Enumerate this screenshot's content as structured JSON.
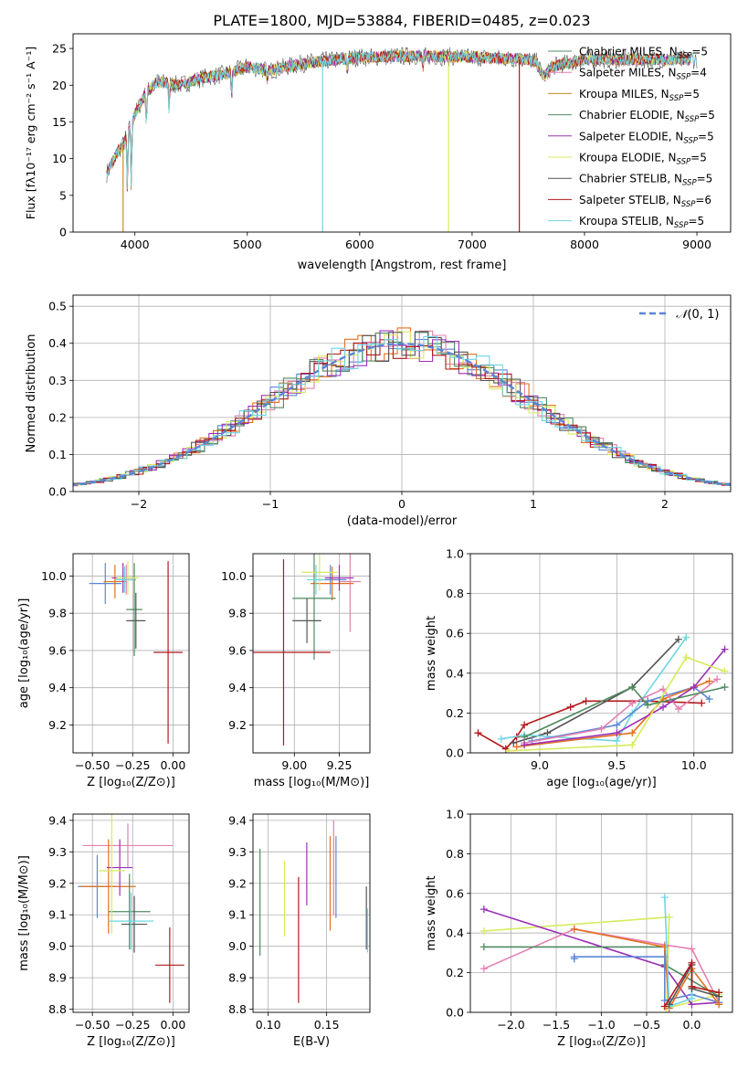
{
  "figure": {
    "title": "PLATE=1800, MJD=53884, FIBERID=0485, z=0.023",
    "colors": [
      "#5f7f3f",
      "#e47fb0",
      "#e3751f",
      "#4f7f4f",
      "#8b2fb1",
      "#d4e84c",
      "#4d4d4d",
      "#b01418",
      "#6ad3df"
    ],
    "model_colors": {
      "Chabrier MILES": "#5b8b66",
      "Salpeter MILES": "#e47fb0",
      "Kroupa MILES": "#c98a2a",
      "Chabrier ELODIE": "#4f8b5f",
      "Salpeter ELODIE": "#9b30b8",
      "Kroupa ELODIE": "#d7ea5c",
      "Chabrier STELIB": "#555555",
      "Salpeter STELIB": "#b3191b",
      "Kroupa STELIB": "#6fd6e2",
      "Blue": "#5a86d6",
      "Orange": "#e4701e"
    }
  },
  "chart_data": [
    {
      "id": "spectrum",
      "type": "line",
      "xlabel": "wavelength [Angstrom, rest frame]",
      "ylabel": "Flux [fλ10⁻¹⁷ erg cm⁻² s⁻¹ A⁻¹]",
      "xlim": [
        3450,
        9300
      ],
      "ylim": [
        0,
        27
      ],
      "xticks": [
        4000,
        5000,
        6000,
        7000,
        8000,
        9000
      ],
      "yticks": [
        0,
        5,
        10,
        15,
        20,
        25
      ],
      "legend_position": "top-right",
      "series": [
        {
          "name": "Chabrier MILES, N_SSP=5",
          "label": "Chabrier MILES, N",
          "sub": "SSP",
          "n": "=5"
        },
        {
          "name": "Salpeter MILES, N_SSP=4",
          "label": "Salpeter MILES, N",
          "sub": "SSP",
          "n": "=4"
        },
        {
          "name": "Kroupa MILES, N_SSP=5",
          "label": "Kroupa MILES, N",
          "sub": "SSP",
          "n": "=5"
        },
        {
          "name": "Chabrier ELODIE, N_SSP=5",
          "label": "Chabrier ELODIE, N",
          "sub": "SSP",
          "n": "=5"
        },
        {
          "name": "Salpeter ELODIE, N_SSP=5",
          "label": "Salpeter ELODIE, N",
          "sub": "SSP",
          "n": "=5"
        },
        {
          "name": "Kroupa ELODIE, N_SSP=5",
          "label": "Kroupa ELODIE, N",
          "sub": "SSP",
          "n": "=5"
        },
        {
          "name": "Chabrier STELIB, N_SSP=5",
          "label": "Chabrier STELIB, N",
          "sub": "SSP",
          "n": "=5"
        },
        {
          "name": "Salpeter STELIB, N_SSP=6",
          "label": "Salpeter STELIB, N",
          "sub": "SSP",
          "n": "=6"
        },
        {
          "name": "Kroupa STELIB, N_SSP=5",
          "label": "Kroupa STELIB, N",
          "sub": "SSP",
          "n": "=5"
        }
      ],
      "continuum": [
        [
          3750,
          8
        ],
        [
          3850,
          11
        ],
        [
          3900,
          12
        ],
        [
          4000,
          16
        ],
        [
          4100,
          19
        ],
        [
          4200,
          20.5
        ],
        [
          4400,
          20
        ],
        [
          4600,
          21
        ],
        [
          4800,
          21.5
        ],
        [
          5000,
          22.5
        ],
        [
          5200,
          22
        ],
        [
          5500,
          23
        ],
        [
          6000,
          23.8
        ],
        [
          6500,
          24
        ],
        [
          7000,
          23.8
        ],
        [
          7500,
          23.5
        ],
        [
          7700,
          22.5
        ],
        [
          8000,
          23.5
        ],
        [
          8500,
          23.5
        ],
        [
          9000,
          23.5
        ]
      ],
      "absorption_features": [
        [
          3933,
          4
        ],
        [
          3968,
          4
        ],
        [
          4102,
          14
        ],
        [
          4304,
          16
        ],
        [
          4861,
          18
        ],
        [
          5175,
          20
        ],
        [
          5890,
          21
        ],
        [
          6563,
          22
        ]
      ],
      "line_drops": [
        {
          "series": "Kroupa MILES",
          "x": 3895,
          "y_min": 0
        },
        {
          "series": "Kroupa STELIB",
          "x": 5670,
          "y_min": 0
        },
        {
          "series": "Kroupa ELODIE",
          "x": 6790,
          "y_min": 0
        },
        {
          "series": "Salpeter STELIB",
          "x": 7420,
          "y_min": 0
        }
      ]
    },
    {
      "id": "residual_hist",
      "type": "histogram",
      "xlabel": "(data-model)/error",
      "ylabel": "Normed distribution",
      "xlim": [
        -2.5,
        2.5
      ],
      "ylim": [
        0,
        0.53
      ],
      "xticks": [
        -2,
        -1,
        0,
        1,
        2
      ],
      "yticks": [
        0.0,
        0.1,
        0.2,
        0.3,
        0.4,
        0.5
      ],
      "grid": true,
      "legend_position": "top-right",
      "reference_curve": {
        "name": "𝒩(0, 1)",
        "label": "(0, 1)",
        "script_n": "𝒩",
        "mean": 0,
        "sigma": 1
      }
    },
    {
      "id": "age_vs_Z",
      "type": "errorbar",
      "xlabel": "Z [log₁₀(Z/Z⊙)]",
      "ylabel": "age  [log₁₀(age/yr)]",
      "xlim": [
        -0.62,
        0.1
      ],
      "ylim": [
        9.05,
        10.12
      ],
      "xticks": [
        -0.5,
        -0.25,
        0.0
      ],
      "xticklabels": [
        "−0.50",
        "−0.25",
        "0.00"
      ],
      "yticks": [
        9.2,
        9.4,
        9.6,
        9.8,
        10.0
      ],
      "grid": true,
      "points": [
        {
          "model": "Blue",
          "x": -0.42,
          "y": 9.96,
          "xerr": 0.1,
          "yerr": 0.11
        },
        {
          "model": "Salpeter MILES",
          "x": -0.29,
          "y": 9.98,
          "xerr": 0.06,
          "yerr": 0.08
        },
        {
          "model": "Orange",
          "x": -0.36,
          "y": 9.97,
          "xerr": 0.07,
          "yerr": 0.09
        },
        {
          "model": "Chabrier ELODIE",
          "x": -0.24,
          "y": 9.82,
          "xerr": 0.05,
          "yerr": 0.25
        },
        {
          "model": "Salpeter ELODIE",
          "x": -0.31,
          "y": 9.99,
          "xerr": 0.07,
          "yerr": 0.08
        },
        {
          "model": "Kroupa ELODIE",
          "x": -0.28,
          "y": 9.99,
          "xerr": 0.07,
          "yerr": 0.09
        },
        {
          "model": "Chabrier STELIB",
          "x": -0.23,
          "y": 9.76,
          "xerr": 0.06,
          "yerr": 0.15
        },
        {
          "model": "Salpeter STELIB",
          "x": -0.03,
          "y": 9.59,
          "xerr": 0.09,
          "yerr": 0.49
        },
        {
          "model": "Kroupa STELIB",
          "x": -0.3,
          "y": 9.98,
          "xerr": 0.06,
          "yerr": 0.07
        }
      ]
    },
    {
      "id": "age_vs_mass",
      "type": "errorbar",
      "xlabel": "mass [log₁₀(M/M⊙)]",
      "ylabel": "",
      "xlim": [
        8.77,
        9.42
      ],
      "ylim": [
        9.05,
        10.12
      ],
      "xticks": [
        9.0,
        9.25
      ],
      "xticklabels": [
        "9.00",
        "9.25"
      ],
      "yticks": [
        9.2,
        9.4,
        9.6,
        9.8,
        10.0
      ],
      "grid": true,
      "points": [
        {
          "model": "Blue",
          "x": 9.2,
          "y": 9.98,
          "xerr": 0.09,
          "yerr": 0.08
        },
        {
          "model": "Salpeter MILES",
          "x": 9.31,
          "y": 9.97,
          "xerr": 0.06,
          "yerr": 0.27
        },
        {
          "model": "Orange",
          "x": 9.21,
          "y": 9.96,
          "xerr": 0.12,
          "yerr": 0.09
        },
        {
          "model": "Chabrier ELODIE",
          "x": 9.11,
          "y": 9.88,
          "xerr": 0.12,
          "yerr": 0.33
        },
        {
          "model": "Salpeter ELODIE",
          "x": 9.25,
          "y": 9.99,
          "xerr": 0.08,
          "yerr": 0.07
        },
        {
          "model": "Kroupa ELODIE",
          "x": 9.14,
          "y": 10.02,
          "xerr": 0.1,
          "yerr": 0.1
        },
        {
          "model": "Chabrier STELIB",
          "x": 9.07,
          "y": 9.76,
          "xerr": 0.08,
          "yerr": 0.12
        },
        {
          "model": "Salpeter STELIB",
          "x": 8.94,
          "y": 9.59,
          "xerr": 0.26,
          "yerr": 0.5
        },
        {
          "model": "Kroupa STELIB",
          "x": 9.12,
          "y": 9.98,
          "xerr": 0.05,
          "yerr": 0.08
        }
      ]
    },
    {
      "id": "weight_vs_age",
      "type": "line",
      "xlabel": "age  [log₁₀(age/yr)]",
      "ylabel": "mass weight",
      "xlim": [
        8.55,
        10.25
      ],
      "ylim": [
        0,
        1.0
      ],
      "xticks": [
        9.0,
        9.5,
        10.0
      ],
      "xticklabels": [
        "9.0",
        "9.5",
        "10.0"
      ],
      "yticks": [
        0.0,
        0.2,
        0.4,
        0.6,
        0.8,
        1.0
      ],
      "grid": true,
      "series": [
        {
          "model": "Salpeter STELIB",
          "x": [
            8.6,
            8.78,
            8.85,
            8.9,
            9.2,
            9.3,
            9.7,
            10.05
          ],
          "y": [
            0.1,
            0.02,
            0.08,
            0.14,
            0.23,
            0.26,
            0.26,
            0.25
          ]
        },
        {
          "model": "Chabrier STELIB",
          "x": [
            8.83,
            9.05,
            9.6,
            9.9
          ],
          "y": [
            0.05,
            0.1,
            0.33,
            0.57
          ]
        },
        {
          "model": "Kroupa STELIB",
          "x": [
            8.75,
            8.9,
            9.5,
            9.6,
            9.95
          ],
          "y": [
            0.07,
            0.09,
            0.06,
            0.2,
            0.58
          ]
        },
        {
          "model": "Blue",
          "x": [
            8.95,
            9.5,
            9.7,
            10.0,
            10.1
          ],
          "y": [
            0.06,
            0.14,
            0.26,
            0.33,
            0.27
          ]
        },
        {
          "model": "Orange",
          "x": [
            8.85,
            9.6,
            9.8,
            10.1
          ],
          "y": [
            0.03,
            0.1,
            0.27,
            0.36
          ]
        },
        {
          "model": "Salpeter MILES",
          "x": [
            8.9,
            9.4,
            9.6,
            9.8,
            9.9,
            10.15
          ],
          "y": [
            0.05,
            0.12,
            0.25,
            0.32,
            0.22,
            0.37
          ]
        },
        {
          "model": "Salpeter ELODIE",
          "x": [
            8.9,
            9.5,
            9.8,
            10.0,
            10.2
          ],
          "y": [
            0.04,
            0.1,
            0.23,
            0.33,
            0.52
          ]
        },
        {
          "model": "Kroupa ELODIE",
          "x": [
            8.8,
            9.6,
            9.95,
            10.2
          ],
          "y": [
            0.01,
            0.04,
            0.48,
            0.41
          ]
        },
        {
          "model": "Chabrier ELODIE",
          "x": [
            8.9,
            9.6,
            9.7,
            10.2
          ],
          "y": [
            0.08,
            0.33,
            0.24,
            0.33
          ]
        }
      ]
    },
    {
      "id": "mass_vs_Z",
      "type": "errorbar",
      "xlabel": "Z [log₁₀(Z/Z⊙)]",
      "ylabel": "mass [log₁₀(M/M⊙)]",
      "xlim": [
        -0.62,
        0.1
      ],
      "ylim": [
        8.79,
        9.42
      ],
      "xticks": [
        -0.5,
        -0.25,
        0.0
      ],
      "xticklabels": [
        "−0.50",
        "−0.25",
        "0.00"
      ],
      "yticks": [
        8.8,
        8.9,
        9.0,
        9.1,
        9.2,
        9.3,
        9.4
      ],
      "grid": true,
      "points": [
        {
          "model": "Blue",
          "x": -0.47,
          "y": 9.19,
          "xerr": 0.12,
          "yerr": 0.1
        },
        {
          "model": "Salpeter MILES",
          "x": -0.28,
          "y": 9.32,
          "xerr": 0.28,
          "yerr": 0.07
        },
        {
          "model": "Orange",
          "x": -0.4,
          "y": 9.19,
          "xerr": 0.17,
          "yerr": 0.15
        },
        {
          "model": "Chabrier ELODIE",
          "x": -0.27,
          "y": 9.11,
          "xerr": 0.13,
          "yerr": 0.12
        },
        {
          "model": "Salpeter ELODIE",
          "x": -0.33,
          "y": 9.25,
          "xerr": 0.08,
          "yerr": 0.09
        },
        {
          "model": "Kroupa ELODIE",
          "x": -0.38,
          "y": 9.24,
          "xerr": 0.08,
          "yerr": 0.2
        },
        {
          "model": "Chabrier STELIB",
          "x": -0.24,
          "y": 9.07,
          "xerr": 0.08,
          "yerr": 0.09
        },
        {
          "model": "Salpeter STELIB",
          "x": -0.02,
          "y": 8.94,
          "xerr": 0.09,
          "yerr": 0.12
        },
        {
          "model": "Kroupa STELIB",
          "x": -0.26,
          "y": 9.08,
          "xerr": 0.14,
          "yerr": 0.09
        }
      ]
    },
    {
      "id": "mass_vs_EBV",
      "type": "errorbar",
      "xlabel": "E(B-V)",
      "ylabel": "",
      "xlim": [
        0.087,
        0.187
      ],
      "ylim": [
        8.79,
        9.42
      ],
      "xticks": [
        0.1,
        0.15
      ],
      "xticklabels": [
        "0.10",
        "0.15"
      ],
      "yticks": [
        8.8,
        8.9,
        9.0,
        9.1,
        9.2,
        9.3,
        9.4
      ],
      "grid": true,
      "points": [
        {
          "model": "Chabrier ELODIE",
          "x": 0.093,
          "y": 9.14,
          "yerr": 0.17
        },
        {
          "model": "Kroupa ELODIE",
          "x": 0.114,
          "y": 9.15,
          "yerr": 0.12
        },
        {
          "model": "Salpeter STELIB",
          "x": 0.126,
          "y": 9.02,
          "yerr": 0.2
        },
        {
          "model": "Salpeter ELODIE",
          "x": 0.133,
          "y": 9.23,
          "yerr": 0.1
        },
        {
          "model": "Orange",
          "x": 0.153,
          "y": 9.2,
          "yerr": 0.15
        },
        {
          "model": "Salpeter MILES",
          "x": 0.156,
          "y": 9.25,
          "yerr": 0.15
        },
        {
          "model": "Blue",
          "x": 0.158,
          "y": 9.22,
          "yerr": 0.13
        },
        {
          "model": "Chabrier STELIB",
          "x": 0.184,
          "y": 9.09,
          "yerr": 0.1
        },
        {
          "model": "Kroupa STELIB",
          "x": 0.185,
          "y": 9.05,
          "yerr": 0.07
        }
      ]
    },
    {
      "id": "weight_vs_Z",
      "type": "line",
      "xlabel": "Z [log₁₀(Z/Z⊙)]",
      "ylabel": "mass weight",
      "xlim": [
        -2.45,
        0.45
      ],
      "ylim": [
        0,
        1.0
      ],
      "xticks": [
        -2.0,
        -1.5,
        -1.0,
        -0.5,
        0.0
      ],
      "xticklabels": [
        "−2.0",
        "−1.5",
        "−1.0",
        "−0.5",
        "0.0"
      ],
      "yticks": [
        0.0,
        0.2,
        0.4,
        0.6,
        0.8,
        1.0
      ],
      "grid": true,
      "series": [
        {
          "model": "Kroupa ELODIE",
          "x": [
            -2.3,
            -0.25,
            -0.28,
            0.3
          ],
          "y": [
            0.41,
            0.48,
            0.02,
            0.09
          ]
        },
        {
          "model": "Salpeter ELODIE",
          "x": [
            -2.3,
            -0.3,
            0.0,
            0.3
          ],
          "y": [
            0.52,
            0.23,
            0.04,
            0.05
          ]
        },
        {
          "model": "Salpeter MILES",
          "x": [
            -2.3,
            -1.3,
            -0.3,
            0.0,
            0.3
          ],
          "y": [
            0.22,
            0.42,
            0.34,
            0.32,
            0.05
          ]
        },
        {
          "model": "Chabrier ELODIE",
          "x": [
            -2.3,
            -0.3,
            -0.3,
            0.3
          ],
          "y": [
            0.33,
            0.33,
            0.24,
            0.08
          ]
        },
        {
          "model": "Blue",
          "x": [
            -1.3,
            -1.3,
            -0.3,
            -0.3,
            0.0,
            0.3
          ],
          "y": [
            0.27,
            0.28,
            0.28,
            0.06,
            0.09,
            0.05
          ]
        },
        {
          "model": "Orange",
          "x": [
            -1.3,
            -0.3,
            -0.25,
            0.0,
            0.3
          ],
          "y": [
            0.42,
            0.33,
            0.02,
            0.22,
            0.04
          ]
        },
        {
          "model": "Kroupa STELIB",
          "x": [
            -0.3,
            -0.25,
            0.0,
            0.0
          ],
          "y": [
            0.58,
            0.03,
            0.07,
            0.2
          ]
        },
        {
          "model": "Chabrier STELIB",
          "x": [
            -0.25,
            0.0,
            0.0,
            0.3
          ],
          "y": [
            0.04,
            0.24,
            0.12,
            0.08
          ]
        },
        {
          "model": "Salpeter STELIB",
          "x": [
            -0.3,
            0.0,
            0.0,
            0.3
          ],
          "y": [
            0.03,
            0.25,
            0.13,
            0.1
          ]
        }
      ]
    }
  ]
}
